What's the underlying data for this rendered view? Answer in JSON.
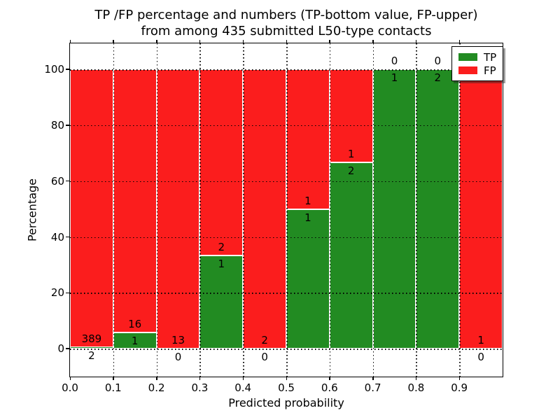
{
  "figure": {
    "title_line1": "TP /FP percentage and numbers (TP-bottom value, FP-upper)",
    "title_line2": "from among 435 submitted L50-type contacts"
  },
  "chart_data": {
    "type": "bar",
    "stacked": true,
    "normalized": "percent",
    "title": "TP /FP percentage and numbers (TP-bottom value, FP-upper)\nfrom among 435 submitted L50-type contacts",
    "xlabel": "Predicted probability",
    "ylabel": "Percentage",
    "total_contacts": 435,
    "series": [
      {
        "name": "TP",
        "color": "#228b22",
        "label_position": "bottom",
        "counts": [
          2,
          1,
          0,
          1,
          0,
          1,
          2,
          1,
          2,
          0
        ]
      },
      {
        "name": "FP",
        "color": "#fb1d1d",
        "label_position": "upper",
        "counts": [
          389,
          16,
          13,
          2,
          2,
          1,
          1,
          0,
          0,
          1
        ]
      }
    ],
    "bins": [
      {
        "range": "0.0-0.1",
        "x0": 0.0,
        "x1": 0.1,
        "tp": 2,
        "fp": 389,
        "tp_percent": 0.51
      },
      {
        "range": "0.1-0.2",
        "x0": 0.1,
        "x1": 0.2,
        "tp": 1,
        "fp": 16,
        "tp_percent": 5.88
      },
      {
        "range": "0.2-0.3",
        "x0": 0.2,
        "x1": 0.3,
        "tp": 0,
        "fp": 13,
        "tp_percent": 0
      },
      {
        "range": "0.3-0.4",
        "x0": 0.3,
        "x1": 0.4,
        "tp": 1,
        "fp": 2,
        "tp_percent": 33.33
      },
      {
        "range": "0.4-0.5",
        "x0": 0.4,
        "x1": 0.5,
        "tp": 0,
        "fp": 2,
        "tp_percent": 0
      },
      {
        "range": "0.5-0.6",
        "x0": 0.5,
        "x1": 0.6,
        "tp": 1,
        "fp": 1,
        "tp_percent": 50
      },
      {
        "range": "0.6-0.7",
        "x0": 0.6,
        "x1": 0.7,
        "tp": 2,
        "fp": 1,
        "tp_percent": 66.67
      },
      {
        "range": "0.7-0.8",
        "x0": 0.7,
        "x1": 0.8,
        "tp": 1,
        "fp": 0,
        "tp_percent": 100
      },
      {
        "range": "0.8-0.9",
        "x0": 0.8,
        "x1": 0.9,
        "tp": 2,
        "fp": 0,
        "tp_percent": 100
      },
      {
        "range": "0.9-1.0",
        "x0": 0.9,
        "x1": 1.0,
        "tp": 0,
        "fp": 1,
        "tp_percent": 0
      }
    ],
    "xtick_labels": [
      "0.0",
      "0.1",
      "0.2",
      "0.3",
      "0.4",
      "0.5",
      "0.6",
      "0.7",
      "0.8",
      "0.9"
    ],
    "yticks": [
      0,
      20,
      40,
      60,
      80,
      100
    ],
    "xlim": [
      0.0,
      1.0
    ],
    "ylim": [
      -10,
      109.3
    ],
    "grid": true,
    "grid_style": "dotted-black",
    "bar_edge_color": "#ffffff",
    "background": "#ffffff",
    "legend": {
      "position": "upper right",
      "entries": [
        {
          "label": "TP",
          "color": "#228b22"
        },
        {
          "label": "FP",
          "color": "#fb1d1d"
        }
      ]
    }
  }
}
